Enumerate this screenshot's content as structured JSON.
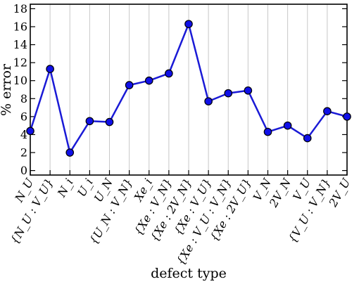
{
  "chart_data": {
    "type": "line",
    "xlabel": "defect type",
    "ylabel": "% error",
    "ylim": [
      -0.5,
      18.5
    ],
    "yticks": [
      0,
      2,
      4,
      6,
      8,
      10,
      12,
      14,
      16,
      18
    ],
    "grid": "vertical",
    "legend": "none",
    "line_color": "#1a1ad6",
    "marker_color": "#1010e8",
    "categories": [
      "N_U",
      "{N_U : V_U}",
      "N_i",
      "U_i",
      "U_N",
      "{U_N : V_N}",
      "Xe_i",
      "{Xe : V_N}",
      "{Xe : 2V_N}",
      "{Xe : V_U}",
      "{Xe : V_U : V_N}",
      "{Xe : 2V_U}",
      "V_N",
      "2V_N",
      "V_U",
      "{V_U : V_N}",
      "2V_U"
    ],
    "values": [
      4.4,
      11.3,
      2.0,
      5.5,
      5.4,
      9.5,
      10.0,
      10.8,
      16.3,
      7.7,
      8.6,
      8.9,
      4.3,
      5.0,
      3.6,
      6.6,
      6.0
    ]
  }
}
